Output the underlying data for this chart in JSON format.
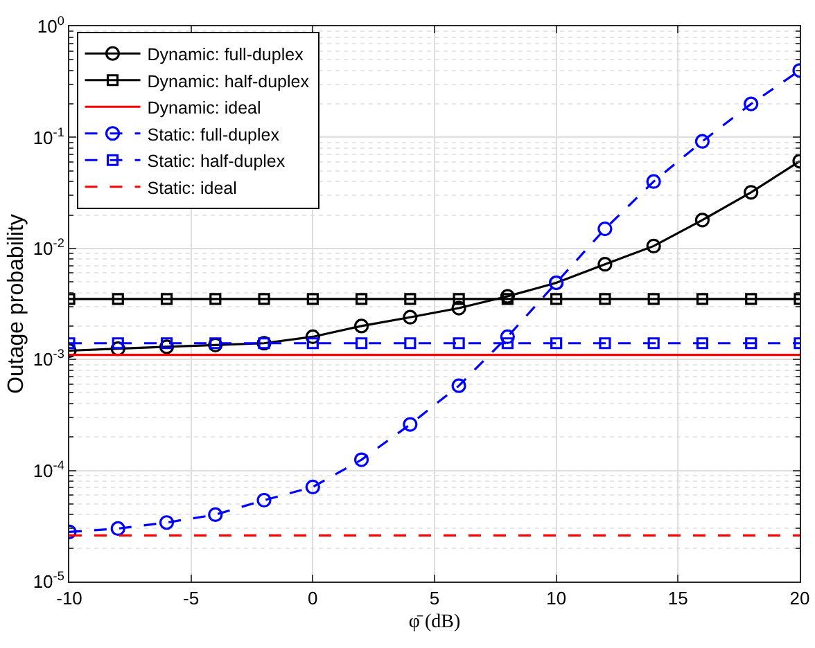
{
  "chart_data": {
    "type": "line",
    "xlabel": "φ̄ (dB)",
    "ylabel": "Outage probability",
    "x": [
      -10,
      -8,
      -6,
      -4,
      -2,
      0,
      2,
      4,
      6,
      8,
      10,
      12,
      14,
      16,
      18,
      20
    ],
    "series": [
      {
        "name": "Dynamic: full-duplex",
        "color": "#000000",
        "marker": "circle",
        "line_style": "solid",
        "values": [
          0.0012,
          0.00125,
          0.0013,
          0.00135,
          0.0014,
          0.0016,
          0.002,
          0.0024,
          0.0029,
          0.0037,
          0.0049,
          0.0072,
          0.0105,
          0.018,
          0.032,
          0.061
        ]
      },
      {
        "name": "Dynamic: half-duplex",
        "color": "#000000",
        "marker": "square",
        "line_style": "solid",
        "values": [
          0.0035,
          0.0035,
          0.0035,
          0.0035,
          0.0035,
          0.0035,
          0.0035,
          0.0035,
          0.0035,
          0.0035,
          0.0035,
          0.0035,
          0.0035,
          0.0035,
          0.0035,
          0.0035
        ]
      },
      {
        "name": "Dynamic: ideal",
        "color": "#ff0000",
        "marker": "none",
        "line_style": "solid",
        "values": [
          0.0011,
          0.0011,
          0.0011,
          0.0011,
          0.0011,
          0.0011,
          0.0011,
          0.0011,
          0.0011,
          0.0011,
          0.0011,
          0.0011,
          0.0011,
          0.0011,
          0.0011,
          0.0011
        ]
      },
      {
        "name": "Static: full-duplex",
        "color": "#0000ff",
        "marker": "circle",
        "line_style": "dashed",
        "values": [
          2.8e-05,
          3e-05,
          3.4e-05,
          4e-05,
          5.4e-05,
          7.1e-05,
          0.000125,
          0.00026,
          0.00058,
          0.0016,
          0.0049,
          0.015,
          0.04,
          0.092,
          0.2,
          0.4
        ]
      },
      {
        "name": "Static: half-duplex",
        "color": "#0000ff",
        "marker": "square",
        "line_style": "dashed",
        "values": [
          0.0014,
          0.0014,
          0.0014,
          0.0014,
          0.0014,
          0.0014,
          0.0014,
          0.0014,
          0.0014,
          0.0014,
          0.0014,
          0.0014,
          0.0014,
          0.0014,
          0.0014,
          0.0014
        ]
      },
      {
        "name": "Static: ideal",
        "color": "#ff0000",
        "marker": "none",
        "line_style": "dashed",
        "values": [
          2.6e-05,
          2.6e-05,
          2.6e-05,
          2.6e-05,
          2.6e-05,
          2.6e-05,
          2.6e-05,
          2.6e-05,
          2.6e-05,
          2.6e-05,
          2.6e-05,
          2.6e-05,
          2.6e-05,
          2.6e-05,
          2.6e-05,
          2.6e-05
        ]
      }
    ],
    "xlim": [
      -10,
      20
    ],
    "xticks": [
      -10,
      -5,
      0,
      5,
      10,
      15,
      20
    ],
    "log": "y",
    "ylim": [
      1e-05,
      1
    ],
    "yticks": [
      {
        "value": 1e-05,
        "label": "10$^{-5}$"
      },
      {
        "value": 0.0001,
        "label": "10$^{-4}$"
      },
      {
        "value": 0.001,
        "label": "10$^{-3}$"
      },
      {
        "value": 0.01,
        "label": "10$^{-2}$"
      },
      {
        "value": 0.1,
        "label": "10$^{-1}$"
      },
      {
        "value": 1,
        "label": "10$^{0}$"
      }
    ],
    "grid": true,
    "legend": "top left"
  }
}
